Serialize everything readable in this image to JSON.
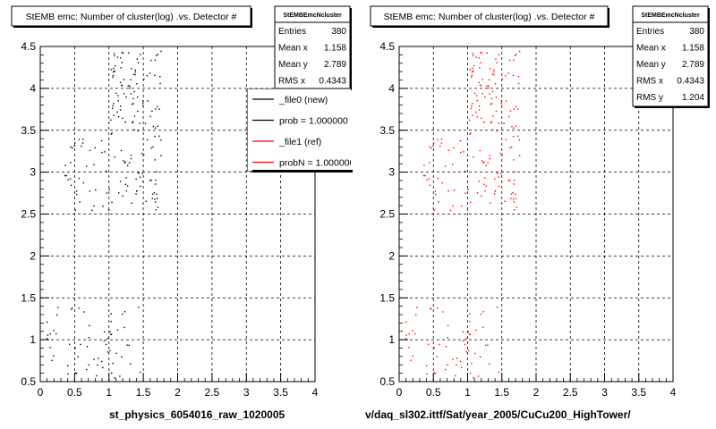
{
  "chart_data": [
    {
      "type": "scatter",
      "title": "StEMB emc: Number of cluster(log) .vs. Detector #",
      "xlabel": "st_physics_6054016_raw_1020005",
      "ylabel": "",
      "xlim": [
        0,
        4
      ],
      "ylim": [
        0.5,
        4.5
      ],
      "grid": true,
      "x_ticks": [
        "0",
        "0.5",
        "1",
        "1.5",
        "2",
        "2.5",
        "3",
        "3.5",
        "4"
      ],
      "y_ticks": [
        "0.5",
        "1",
        "1.5",
        "2",
        "2.5",
        "3",
        "3.5",
        "4",
        "4.5"
      ],
      "point_color": "#000000",
      "stats": {
        "name": "StEMBEmcNcluster",
        "rows": [
          {
            "label": "Entries",
            "value": "380"
          },
          {
            "label": "Mean x",
            "value": "1.158"
          },
          {
            "label": "Mean y",
            "value": "2.789"
          },
          {
            "label": "RMS x",
            "value": "0.4343"
          }
        ]
      },
      "legend": {
        "placement": "top-right",
        "entries": [
          {
            "label": "_file0 (new)",
            "color": "#000000"
          },
          {
            "label": "prob = 1.000000",
            "color": "#000000"
          },
          {
            "label": "_file1 (ref)",
            "color": "#ff0000"
          },
          {
            "label": "probN = 1.000000",
            "color": "#ff0000"
          }
        ]
      },
      "point_clusters": [
        {
          "xmin": 0.05,
          "xmax": 1.45,
          "ymin": 0.55,
          "ymax": 1.4,
          "n": 60
        },
        {
          "xmin": 0.35,
          "xmax": 1.75,
          "ymin": 2.55,
          "ymax": 3.45,
          "n": 90
        },
        {
          "xmin": 1.0,
          "xmax": 1.75,
          "ymin": 3.45,
          "ymax": 4.45,
          "n": 90
        }
      ]
    },
    {
      "type": "scatter",
      "title": "StEMB emc: Number of cluster(log) .vs. Detector #",
      "xlabel": "v/daq_sl302.ittf/Sat/year_2005/CuCu200_HighTower/",
      "ylabel": "",
      "xlim": [
        0,
        4
      ],
      "ylim": [
        0.5,
        4.5
      ],
      "grid": true,
      "x_ticks": [
        "0",
        "0.5",
        "1",
        "1.5",
        "2",
        "2.5",
        "3",
        "3.5",
        "4"
      ],
      "y_ticks": [
        "0.5",
        "1",
        "1.5",
        "2",
        "2.5",
        "3",
        "3.5",
        "4",
        "4.5"
      ],
      "point_color": "#ff0000",
      "stats": {
        "name": "StEMBEmcNcluster",
        "rows": [
          {
            "label": "Entries",
            "value": "380"
          },
          {
            "label": "Mean x",
            "value": "1.158"
          },
          {
            "label": "Mean y",
            "value": "2.789"
          },
          {
            "label": "RMS x",
            "value": "0.4343"
          },
          {
            "label": "RMS y",
            "value": "1.204"
          }
        ]
      },
      "point_clusters": [
        {
          "xmin": 0.05,
          "xmax": 1.45,
          "ymin": 0.55,
          "ymax": 1.4,
          "n": 60
        },
        {
          "xmin": 0.35,
          "xmax": 1.75,
          "ymin": 2.55,
          "ymax": 3.45,
          "n": 90
        },
        {
          "xmin": 1.0,
          "xmax": 1.75,
          "ymin": 3.45,
          "ymax": 4.45,
          "n": 90
        }
      ]
    }
  ]
}
